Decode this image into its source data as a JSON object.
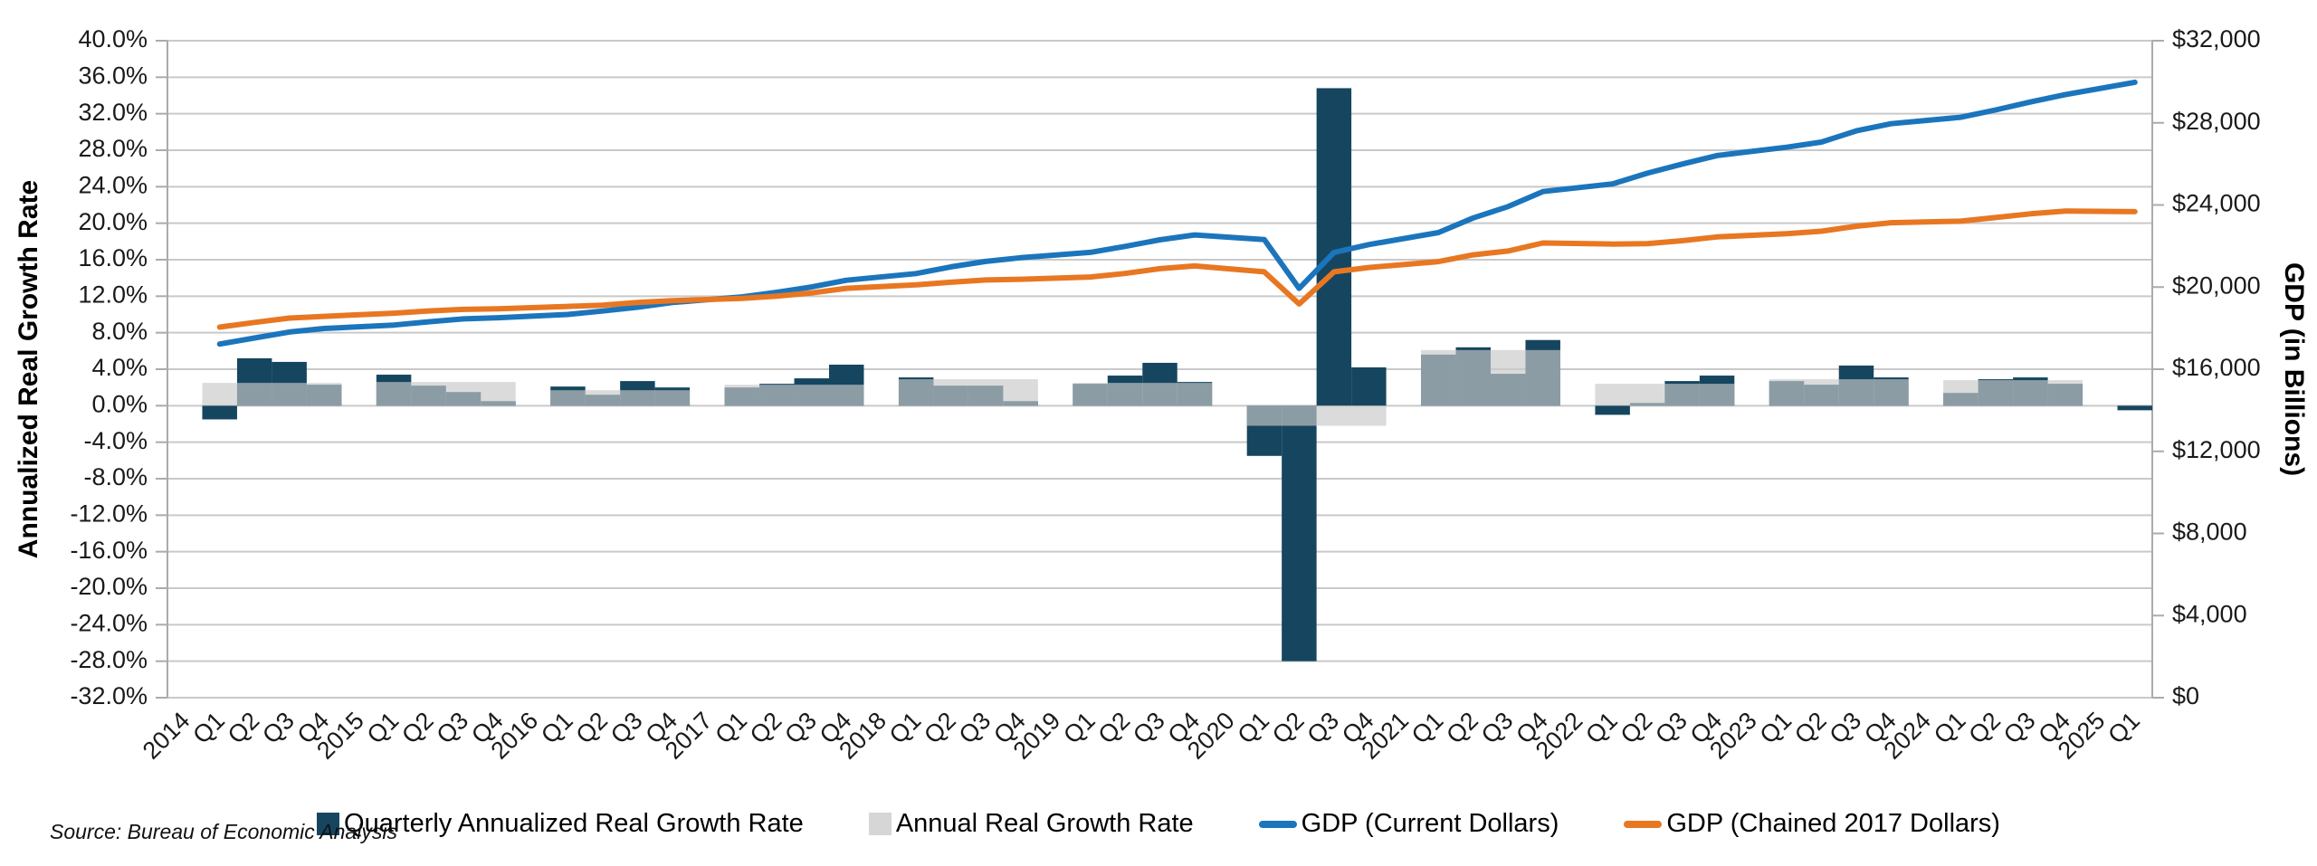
{
  "source_note": "Source: Bureau of Economic Analysis",
  "chart_data": {
    "type": "combo (bar + line, dual axis)",
    "title": "",
    "left_axis": {
      "title": "Annualized Real Growth Rate",
      "min": -32,
      "max": 40,
      "step": 4,
      "tick_labels": [
        "40.0%",
        "36.0%",
        "32.0%",
        "28.0%",
        "24.0%",
        "20.0%",
        "16.0%",
        "12.0%",
        "8.0%",
        "4.0%",
        "0.0%",
        "-4.0%",
        "-8.0%",
        "-12.0%",
        "-16.0%",
        "-20.0%",
        "-24.0%",
        "-28.0%",
        "-32.0%"
      ]
    },
    "right_axis": {
      "title": "GDP (in Billions)",
      "min": 0,
      "max": 32000,
      "step": 4000,
      "tick_labels": [
        "$32,000",
        "$28,000",
        "$24,000",
        "$20,000",
        "$16,000",
        "$12,000",
        "$8,000",
        "$4,000",
        "$0"
      ]
    },
    "legend": [
      {
        "label": "Quarterly Annualized Real Growth Rate",
        "marker": "square",
        "color": "#16465F"
      },
      {
        "label": "Annual Real Growth Rate",
        "marker": "square",
        "color": "#D6D6D6"
      },
      {
        "label": "GDP (Current Dollars)",
        "marker": "line",
        "color": "#1B75BC"
      },
      {
        "label": "GDP (Chained 2017 Dollars)",
        "marker": "line",
        "color": "#E87722"
      }
    ],
    "colors": {
      "quarterly_bar": "#16465F",
      "annual_bar_overlay": "#C9C9C9",
      "annual_bar_overlay_opacity": 0.66,
      "gdp_current_line": "#1B75BC",
      "gdp_chained_line": "#E87722",
      "gridline": "#C9C9C9",
      "axis_line": "#ABABAB",
      "text": "#1A1A1A"
    },
    "units": {
      "bars": "percent (annualized real growth)",
      "lines": "GDP in billions of dollars"
    },
    "years": [
      {
        "year": "2014",
        "annual": 2.5,
        "quarters": [
          {
            "label": "Q1",
            "growth": -1.5,
            "gdp_current": 17227,
            "gdp_chained": 18048
          },
          {
            "label": "Q2",
            "growth": 5.2,
            "gdp_current": 17522,
            "gdp_chained": 18280
          },
          {
            "label": "Q3",
            "growth": 4.8,
            "gdp_current": 17812,
            "gdp_chained": 18491
          },
          {
            "label": "Q4",
            "growth": 2.3,
            "gdp_current": 17982,
            "gdp_chained": 18575
          }
        ]
      },
      {
        "year": "2015",
        "annual": 2.6,
        "quarters": [
          {
            "label": "Q1",
            "growth": 3.4,
            "gdp_current": 18152,
            "gdp_chained": 18727
          },
          {
            "label": "Q2",
            "growth": 2.2,
            "gdp_current": 18310,
            "gdp_chained": 18838
          },
          {
            "label": "Q3",
            "growth": 1.5,
            "gdp_current": 18450,
            "gdp_chained": 18912
          },
          {
            "label": "Q4",
            "growth": 0.5,
            "gdp_current": 18510,
            "gdp_chained": 18945
          }
        ]
      },
      {
        "year": "2016",
        "annual": 1.7,
        "quarters": [
          {
            "label": "Q1",
            "growth": 2.1,
            "gdp_current": 18665,
            "gdp_chained": 19057
          },
          {
            "label": "Q2",
            "growth": 1.2,
            "gdp_current": 18835,
            "gdp_chained": 19118
          },
          {
            "label": "Q3",
            "growth": 2.7,
            "gdp_current": 19021,
            "gdp_chained": 19247
          },
          {
            "label": "Q4",
            "growth": 2.0,
            "gdp_current": 19250,
            "gdp_chained": 19341
          }
        ]
      },
      {
        "year": "2017",
        "annual": 2.3,
        "quarters": [
          {
            "label": "Q1",
            "growth": 2.0,
            "gdp_current": 19523,
            "gdp_chained": 19447
          },
          {
            "label": "Q2",
            "growth": 2.4,
            "gdp_current": 19745,
            "gdp_chained": 19563
          },
          {
            "label": "Q3",
            "growth": 3.0,
            "gdp_current": 20007,
            "gdp_chained": 19717
          },
          {
            "label": "Q4",
            "growth": 4.5,
            "gdp_current": 20334,
            "gdp_chained": 19941
          }
        ]
      },
      {
        "year": "2018",
        "annual": 2.9,
        "quarters": [
          {
            "label": "Q1",
            "growth": 3.1,
            "gdp_current": 20657,
            "gdp_chained": 20107
          },
          {
            "label": "Q2",
            "growth": 2.2,
            "gdp_current": 20984,
            "gdp_chained": 20235
          },
          {
            "label": "Q3",
            "growth": 2.2,
            "gdp_current": 21250,
            "gdp_chained": 20346
          },
          {
            "label": "Q4",
            "growth": 0.5,
            "gdp_current": 21430,
            "gdp_chained": 20381
          }
        ]
      },
      {
        "year": "2019",
        "annual": 2.5,
        "quarters": [
          {
            "label": "Q1",
            "growth": 2.4,
            "gdp_current": 21690,
            "gdp_chained": 20491
          },
          {
            "label": "Q2",
            "growth": 3.3,
            "gdp_current": 21980,
            "gdp_chained": 20663
          },
          {
            "label": "Q3",
            "growth": 4.7,
            "gdp_current": 22304,
            "gdp_chained": 20895
          },
          {
            "label": "Q4",
            "growth": 2.6,
            "gdp_current": 22541,
            "gdp_chained": 21030
          }
        ]
      },
      {
        "year": "2020",
        "annual": -2.2,
        "quarters": [
          {
            "label": "Q1",
            "growth": -5.5,
            "gdp_current": 22313,
            "gdp_chained": 20743
          },
          {
            "label": "Q2",
            "growth": -28.0,
            "gdp_current": 19935,
            "gdp_chained": 19180
          },
          {
            "label": "Q3",
            "growth": 34.8,
            "gdp_current": 21684,
            "gdp_chained": 20741
          },
          {
            "label": "Q4",
            "growth": 4.2,
            "gdp_current": 22068,
            "gdp_chained": 20954
          }
        ]
      },
      {
        "year": "2021",
        "annual": 6.1,
        "quarters": [
          {
            "label": "Q1",
            "growth": 5.6,
            "gdp_current": 22656,
            "gdp_chained": 21240
          },
          {
            "label": "Q2",
            "growth": 6.4,
            "gdp_current": 23368,
            "gdp_chained": 21571
          },
          {
            "label": "Q3",
            "growth": 3.5,
            "gdp_current": 23921,
            "gdp_chained": 21758
          },
          {
            "label": "Q4",
            "growth": 7.2,
            "gdp_current": 24654,
            "gdp_chained": 22150
          }
        ]
      },
      {
        "year": "2022",
        "annual": 2.4,
        "quarters": [
          {
            "label": "Q1",
            "growth": -1.0,
            "gdp_current": 25029,
            "gdp_chained": 22096
          },
          {
            "label": "Q2",
            "growth": 0.3,
            "gdp_current": 25545,
            "gdp_chained": 22113
          },
          {
            "label": "Q3",
            "growth": 2.7,
            "gdp_current": 25994,
            "gdp_chained": 22260
          },
          {
            "label": "Q4",
            "growth": 3.3,
            "gdp_current": 26408,
            "gdp_chained": 22446
          }
        ]
      },
      {
        "year": "2023",
        "annual": 2.9,
        "quarters": [
          {
            "label": "Q1",
            "growth": 2.7,
            "gdp_current": 26813,
            "gdp_chained": 22600
          },
          {
            "label": "Q2",
            "growth": 2.3,
            "gdp_current": 27063,
            "gdp_chained": 22723
          },
          {
            "label": "Q3",
            "growth": 4.4,
            "gdp_current": 27611,
            "gdp_chained": 22962
          },
          {
            "label": "Q4",
            "growth": 3.1,
            "gdp_current": 27956,
            "gdp_chained": 23138
          }
        ]
      },
      {
        "year": "2024",
        "annual": 2.8,
        "quarters": [
          {
            "label": "Q1",
            "growth": 1.4,
            "gdp_current": 28269,
            "gdp_chained": 23212
          },
          {
            "label": "Q2",
            "growth": 2.9,
            "gdp_current": 28630,
            "gdp_chained": 23387
          },
          {
            "label": "Q3",
            "growth": 3.1,
            "gdp_current": 29017,
            "gdp_chained": 23566
          },
          {
            "label": "Q4",
            "growth": 2.4,
            "gdp_current": 29374,
            "gdp_chained": 23703
          }
        ]
      },
      {
        "year": "2025",
        "annual": null,
        "quarters": [
          {
            "label": "Q1",
            "growth": -0.5,
            "gdp_current": 29977,
            "gdp_chained": 23674
          }
        ]
      }
    ],
    "layout_hints": {
      "gridlines": "horizontal, every 4% (left axis)",
      "legend_position": "bottom center",
      "x_labels_rotated_degrees": 45
    }
  }
}
